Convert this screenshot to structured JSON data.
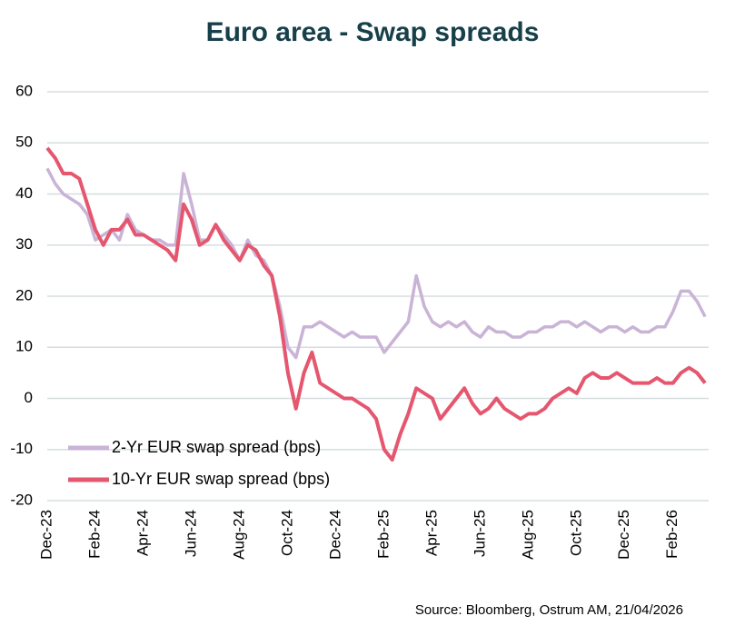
{
  "chart_data": {
    "type": "line",
    "title": "Euro area - Swap spreads",
    "source": "Source: Bloomberg,  Ostrum AM, 21/04/2026",
    "categories": [
      "Dec-23",
      null,
      null,
      null,
      null,
      null,
      "Feb-24",
      null,
      null,
      null,
      null,
      null,
      "Apr-24",
      null,
      null,
      null,
      null,
      null,
      "Jun-24",
      null,
      null,
      null,
      null,
      null,
      "Aug-24",
      null,
      null,
      null,
      null,
      null,
      "Oct-24",
      null,
      null,
      null,
      null,
      null,
      "Dec-24",
      null,
      null,
      null,
      null,
      null,
      "Feb-25",
      null,
      null,
      null,
      null,
      null,
      "Apr-25",
      null,
      null,
      null,
      null,
      null,
      "Jun-25",
      null,
      null,
      null,
      null,
      null,
      "Aug-25",
      null,
      null,
      null,
      null,
      null,
      "Oct-25",
      null,
      null,
      null,
      null,
      null,
      "Dec-25",
      null,
      null,
      null,
      null,
      null,
      "Feb-26",
      null,
      null,
      null,
      null
    ],
    "series": [
      {
        "name": "2-Yr EUR swap spread  (bps)",
        "color": "#c9b3d6",
        "values": [
          45,
          42,
          40,
          39,
          38,
          36,
          31,
          32,
          33,
          31,
          36,
          33,
          32,
          31,
          31,
          30,
          30,
          44,
          38,
          31,
          31,
          34,
          32,
          30,
          27,
          31,
          28,
          27,
          24,
          18,
          10,
          8,
          14,
          14,
          15,
          14,
          13,
          12,
          13,
          12,
          12,
          12,
          9,
          11,
          13,
          15,
          24,
          18,
          15,
          14,
          15,
          14,
          15,
          13,
          12,
          14,
          13,
          13,
          12,
          12,
          13,
          13,
          14,
          14,
          15,
          15,
          14,
          15,
          14,
          13,
          14,
          14,
          13,
          14,
          13,
          13,
          14,
          14,
          17,
          21,
          21,
          19,
          16
        ]
      },
      {
        "name": "10-Yr EUR swap spread  (bps)",
        "color": "#e5566f",
        "values": [
          49,
          47,
          44,
          44,
          43,
          38,
          33,
          30,
          33,
          33,
          35,
          32,
          32,
          31,
          30,
          29,
          27,
          38,
          35,
          30,
          31,
          34,
          31,
          29,
          27,
          30,
          29,
          26,
          24,
          16,
          5,
          -2,
          5,
          9,
          3,
          2,
          1,
          0,
          0,
          -1,
          -2,
          -4,
          -10,
          -12,
          -7,
          -3,
          2,
          1,
          0,
          -4,
          -2,
          0,
          2,
          -1,
          -3,
          -2,
          0,
          -2,
          -3,
          -4,
          -3,
          -3,
          -2,
          0,
          1,
          2,
          1,
          4,
          5,
          4,
          4,
          5,
          4,
          3,
          3,
          3,
          4,
          3,
          3,
          5,
          6,
          5,
          3
        ]
      }
    ],
    "ylim": [
      -20,
      60
    ],
    "yticks": [
      -20,
      -10,
      0,
      10,
      20,
      30,
      40,
      50,
      60
    ],
    "grid": true,
    "legend": "lower left"
  }
}
